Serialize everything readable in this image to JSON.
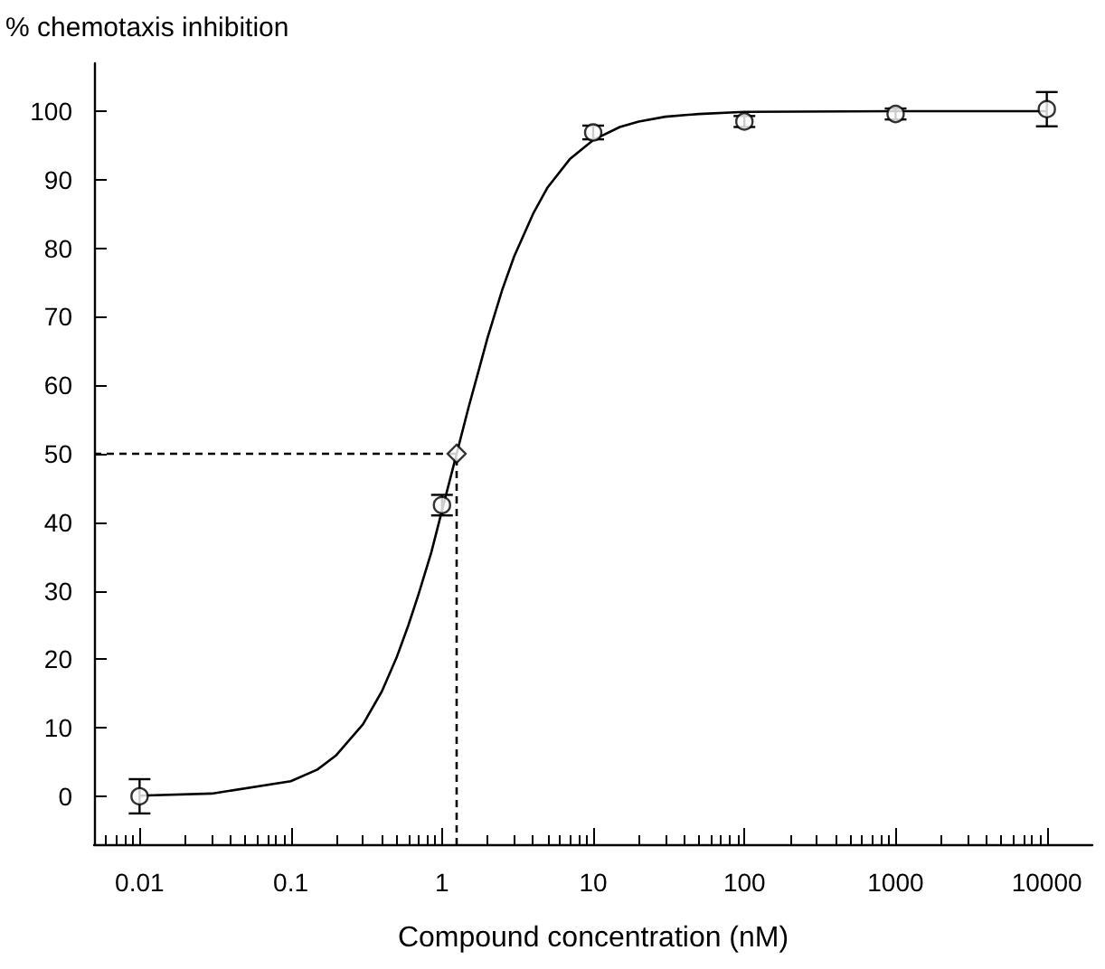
{
  "chart_data": {
    "type": "scatter",
    "xlabel": "Compound concentration (nM)",
    "ylabel": "% chemotaxis inhibition",
    "log": "x",
    "grid": false,
    "xlim": [
      0.005,
      20000
    ],
    "xticks": [
      0.01,
      0.1,
      1,
      10,
      100,
      1000,
      10000
    ],
    "ylim": [
      -7,
      107
    ],
    "yticks": [
      0,
      10,
      20,
      30,
      40,
      50,
      60,
      70,
      80,
      90,
      100
    ],
    "series": [
      {
        "color": "#000000",
        "marker": "circle",
        "x": [
          0.01,
          1,
          10,
          100,
          1000,
          10000
        ],
        "values": [
          0,
          42.5,
          96.9,
          98.5,
          99.6,
          100.3
        ],
        "errors": [
          2.5,
          1.5,
          1,
          0.8,
          0.8,
          2.5
        ]
      },
      {
        "type": "line",
        "color": "#000000",
        "marker": "none",
        "line_style": "solid",
        "x": [
          0.01,
          0.03,
          0.1,
          0.15,
          0.2,
          0.3,
          0.4,
          0.5,
          0.6,
          0.7,
          0.85,
          1,
          1.25,
          1.5,
          1.75,
          2,
          2.5,
          3,
          4,
          5,
          7,
          10,
          15,
          20,
          30,
          50,
          100,
          1000,
          10000
        ],
        "values": [
          0.1,
          0.4,
          2.2,
          3.9,
          6,
          10.5,
          15.3,
          20.2,
          25,
          29.5,
          35.6,
          41.7,
          50,
          56.8,
          62.2,
          66.9,
          73.9,
          78.8,
          85,
          88.9,
          93,
          95.8,
          97.7,
          98.5,
          99.2,
          99.6,
          99.9,
          100,
          100
        ]
      },
      {
        "type": "line",
        "color": "#000000",
        "marker": "none",
        "line_style": "dashed",
        "x": [
          0.005,
          1.25,
          1.25
        ],
        "values": [
          50,
          50,
          -7
        ]
      },
      {
        "type": "scatter",
        "color": "#000000",
        "marker": "diamond",
        "x": [
          1.25
        ],
        "values": [
          50
        ]
      }
    ]
  }
}
